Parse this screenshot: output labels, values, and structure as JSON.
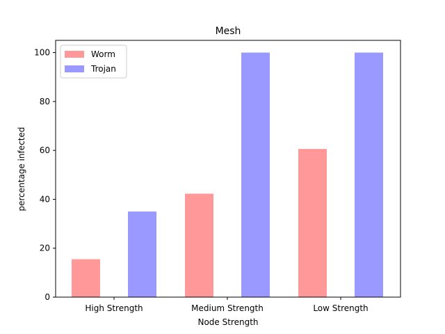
{
  "chart_data": {
    "type": "bar",
    "title": "Mesh",
    "xlabel": "Node Strength",
    "ylabel": "percentage infected",
    "categories": [
      "High Strength",
      "Medium Strength",
      "Low Strength"
    ],
    "series": [
      {
        "name": "Worm",
        "values": [
          15.5,
          42.3,
          60.6
        ],
        "color": "#ff9999"
      },
      {
        "name": "Trojan",
        "values": [
          35.0,
          100.0,
          100.0
        ],
        "color": "#9999ff"
      }
    ],
    "ylim": [
      0,
      105
    ],
    "yticks": [
      0,
      20,
      40,
      60,
      80,
      100
    ],
    "grid": false,
    "legend_position": "top-left"
  }
}
